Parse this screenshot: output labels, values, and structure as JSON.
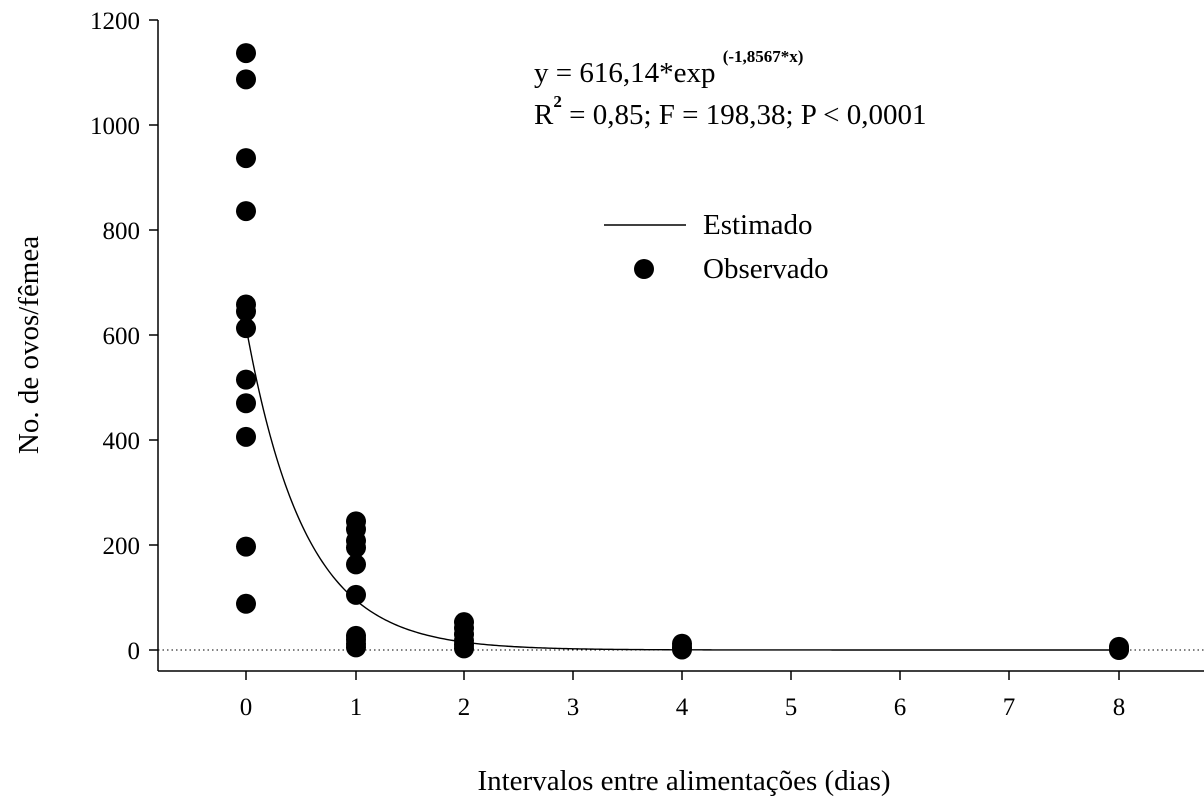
{
  "chart_data": {
    "type": "scatter",
    "xlabel": "Intervalos entre alimentações (dias)",
    "ylabel": "No. de ovos/fêmea",
    "x_tick_labels": [
      "0",
      "1",
      "2",
      "3",
      "4",
      "5",
      "6",
      "7",
      "8"
    ],
    "y_ticks": [
      0,
      200,
      400,
      600,
      800,
      1000,
      1200
    ],
    "y_tick_labels": [
      "0",
      "200",
      "400",
      "600",
      "800",
      "1000",
      "1200"
    ],
    "ylim": [
      -40,
      1200
    ],
    "grid": false,
    "zero_reference_line": true,
    "legend_position": "center-right",
    "equation": {
      "line1_main": "y = 616,14*exp ",
      "line1_exponent": "(-1,8567*x)",
      "line2_R": "R",
      "line2_R_exponent": "2",
      "line2_rest": " = 0,85; F = 198,38; P < 0,0001"
    },
    "series": [
      {
        "name": "Estimado",
        "kind": "line",
        "model": {
          "a": 616.14,
          "b": -1.8567,
          "x_from": 0,
          "x_to": 8
        },
        "color": "#000000"
      },
      {
        "name": "Observado",
        "kind": "scatter",
        "color": "#000000",
        "points": [
          {
            "x": 0,
            "y": 1137
          },
          {
            "x": 0,
            "y": 1087
          },
          {
            "x": 0,
            "y": 937
          },
          {
            "x": 0,
            "y": 836
          },
          {
            "x": 0,
            "y": 658
          },
          {
            "x": 0,
            "y": 645
          },
          {
            "x": 0,
            "y": 613
          },
          {
            "x": 0,
            "y": 515
          },
          {
            "x": 0,
            "y": 470
          },
          {
            "x": 0,
            "y": 406
          },
          {
            "x": 0,
            "y": 197
          },
          {
            "x": 0,
            "y": 88
          },
          {
            "x": 1,
            "y": 245
          },
          {
            "x": 1,
            "y": 230
          },
          {
            "x": 1,
            "y": 208
          },
          {
            "x": 1,
            "y": 195
          },
          {
            "x": 1,
            "y": 163
          },
          {
            "x": 1,
            "y": 105
          },
          {
            "x": 1,
            "y": 27
          },
          {
            "x": 1,
            "y": 20
          },
          {
            "x": 1,
            "y": 12
          },
          {
            "x": 1,
            "y": 5
          },
          {
            "x": 2,
            "y": 53
          },
          {
            "x": 2,
            "y": 42
          },
          {
            "x": 2,
            "y": 30
          },
          {
            "x": 2,
            "y": 18
          },
          {
            "x": 2,
            "y": 10
          },
          {
            "x": 2,
            "y": 3
          },
          {
            "x": 4,
            "y": 12
          },
          {
            "x": 4,
            "y": 5
          },
          {
            "x": 4,
            "y": 1
          },
          {
            "x": 8,
            "y": 6
          },
          {
            "x": 8,
            "y": 2
          },
          {
            "x": 8,
            "y": 0
          }
        ]
      }
    ]
  }
}
